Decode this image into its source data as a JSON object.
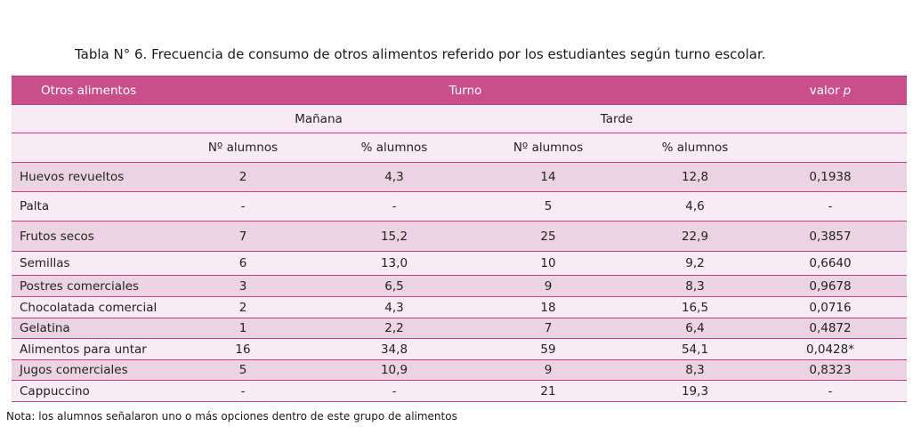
{
  "caption": "Tabla N° 6. Frecuencia de consumo de otros alimentos referido por los estudiantes según turno escolar.",
  "header": {
    "col_name": "Otros alimentos",
    "turno": "Turno",
    "valor_label": "valor",
    "valor_italic": "p",
    "manana": "Mañana",
    "tarde": "Tarde",
    "n_manana": "Nº alumnos",
    "pct_manana": "% alumnos",
    "n_tarde": "Nº alumnos",
    "pct_tarde": "% alumnos"
  },
  "rows": [
    {
      "name": "Huevos revueltos",
      "n_m": "2",
      "p_m": "4,3",
      "n_t": "14",
      "p_t": "12,8",
      "p": "0,1938"
    },
    {
      "name": "Palta",
      "n_m": "-",
      "p_m": "-",
      "n_t": "5",
      "p_t": "4,6",
      "p": "-"
    },
    {
      "name": "Frutos secos",
      "n_m": "7",
      "p_m": "15,2",
      "n_t": "25",
      "p_t": "22,9",
      "p": "0,3857"
    },
    {
      "name": "Semillas",
      "n_m": "6",
      "p_m": "13,0",
      "n_t": "10",
      "p_t": "9,2",
      "p": "0,6640"
    },
    {
      "name": "Postres comerciales",
      "n_m": "3",
      "p_m": "6,5",
      "n_t": "9",
      "p_t": "8,3",
      "p": "0,9678"
    },
    {
      "name": "Chocolatada comercial",
      "n_m": "2",
      "p_m": "4,3",
      "n_t": "18",
      "p_t": "16,5",
      "p": "0,0716"
    },
    {
      "name": "Gelatina",
      "n_m": "1",
      "p_m": "2,2",
      "n_t": "7",
      "p_t": "6,4",
      "p": "0,4872"
    },
    {
      "name": "Alimentos para untar",
      "n_m": "16",
      "p_m": "34,8",
      "n_t": "59",
      "p_t": "54,1",
      "p": "0,0428*"
    },
    {
      "name": "Jugos comerciales",
      "n_m": "5",
      "p_m": "10,9",
      "n_t": "9",
      "p_t": "8,3",
      "p": "0,8323"
    },
    {
      "name": "Cappuccino",
      "n_m": "-",
      "p_m": "-",
      "n_t": "21",
      "p_t": "19,3",
      "p": "-"
    }
  ],
  "note": "Nota: los alumnos señalaron uno o más opciones dentro de este grupo de alimentos",
  "colors": {
    "header_bg": "#c94f8a",
    "row_alt": "#ecd3e2",
    "row_plain": "#f8ebf3",
    "rule": "#c0407e"
  }
}
